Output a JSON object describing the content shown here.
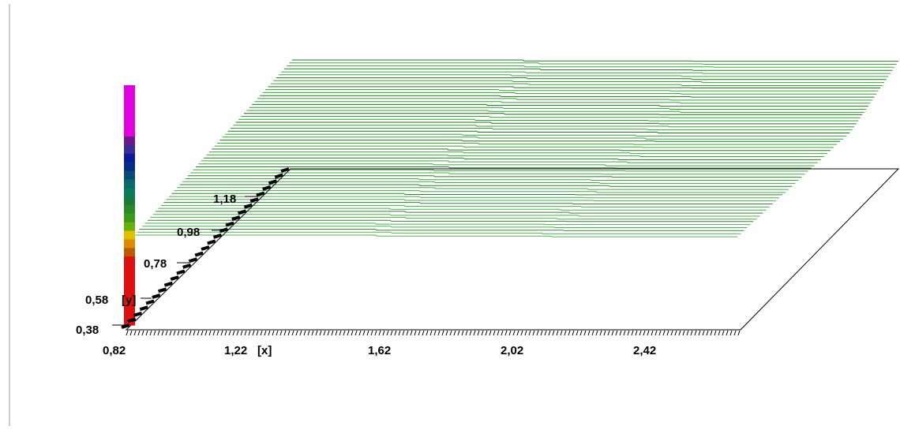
{
  "chart_data": {
    "type": "surface-3d",
    "x_axis": {
      "label": "[x]",
      "ticks": [
        "0,82",
        "1,22",
        "1,62",
        "2,02",
        "2,42"
      ],
      "tick_values": [
        0.82,
        1.22,
        1.62,
        2.02,
        2.42
      ],
      "range": [
        0.82,
        2.72
      ]
    },
    "y_axis": {
      "label": "[y]",
      "ticks": [
        "0,38",
        "0,58",
        "0,78",
        "0,98",
        "1,18"
      ],
      "tick_values": [
        0.38,
        0.58,
        0.78,
        0.98,
        1.18
      ],
      "range": [
        0.38,
        1.28
      ]
    },
    "surface": {
      "color": "#2ca02c",
      "line_count": 60,
      "rendering": "wireframe"
    },
    "color_scale": [
      "#e000e0",
      "#e000e0",
      "#e000e0",
      "#e000e0",
      "#e000e0",
      "#e000e0",
      "#6a1a8a",
      "#3a2a9a",
      "#0a1a9a",
      "#0a2a8a",
      "#0a4a7a",
      "#0a6a6a",
      "#0a7a5a",
      "#1a7a3a",
      "#2a8a2a",
      "#3a9a1a",
      "#6ab00a",
      "#e0c000",
      "#e08a00",
      "#c05a00",
      "#e01010",
      "#e01010",
      "#e01010",
      "#e01010",
      "#e01010",
      "#e01010",
      "#e01010",
      "#e01010"
    ],
    "colors": {
      "frame": "#000000",
      "surface": "#2ca02c",
      "surface_dark": "#1a6a1a",
      "border": "#7a7a7a"
    }
  }
}
